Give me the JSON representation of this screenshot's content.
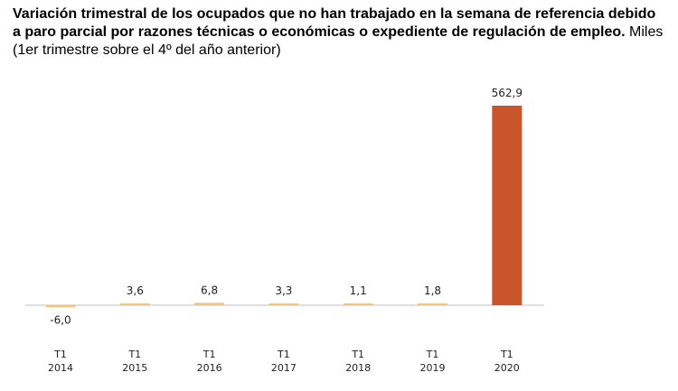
{
  "chart_data": {
    "type": "bar",
    "title": "Variación trimestral de los ocupados que no han trabajado en la semana de referencia debido a paro parcial por razones técnicas o económicas o expediente de regulación de empleo.",
    "subtitle": "Miles  (1er trimestre sobre el 4º del año anterior)",
    "categories": [
      {
        "quarter": "T1",
        "year": "2014"
      },
      {
        "quarter": "T1",
        "year": "2015"
      },
      {
        "quarter": "T1",
        "year": "2016"
      },
      {
        "quarter": "T1",
        "year": "2017"
      },
      {
        "quarter": "T1",
        "year": "2018"
      },
      {
        "quarter": "T1",
        "year": "2019"
      },
      {
        "quarter": "T1",
        "year": "2020"
      }
    ],
    "values": [
      -6.0,
      3.6,
      6.8,
      3.3,
      1.1,
      1.8,
      562.9
    ],
    "value_labels": [
      "-6,0",
      "3,6",
      "6,8",
      "3,3",
      "1,1",
      "1,8",
      "562,9"
    ],
    "colors": [
      "#f2c57c",
      "#f2c57c",
      "#f2c57c",
      "#f2c57c",
      "#f2c57c",
      "#f2c57c",
      "#c9552a"
    ],
    "axis_color": "#bfbfbf",
    "ylim": [
      -6.0,
      562.9
    ],
    "xlabel": "",
    "ylabel": "",
    "grid": false,
    "legend": false
  }
}
